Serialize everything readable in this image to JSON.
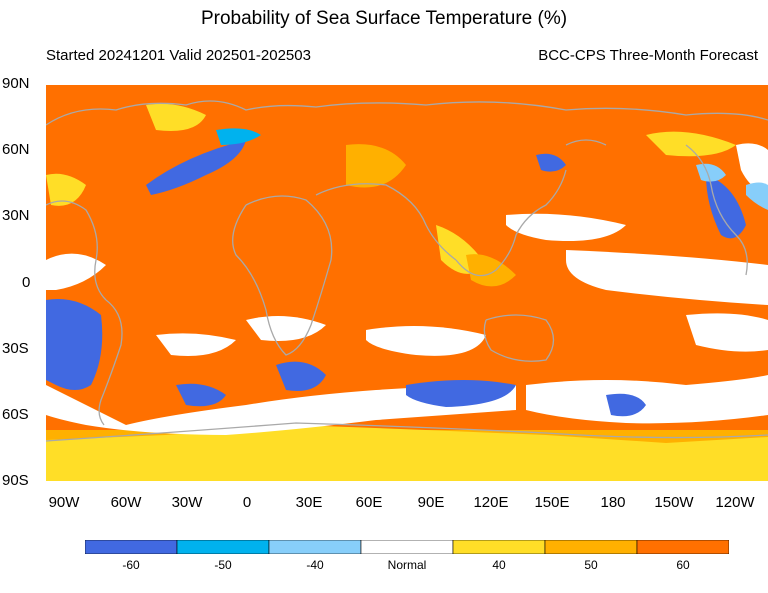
{
  "title": "Probability of Sea Surface Temperature (%)",
  "subtitle_left": "Started 20241201  Valid 202501-202503",
  "subtitle_right": "BCC-CPS Three-Month Forecast",
  "lat_labels": [
    "90N",
    "60N",
    "30N",
    "0",
    "30S",
    "60S",
    "90S"
  ],
  "lon_labels": [
    "90W",
    "60W",
    "30W",
    "0",
    "30E",
    "60E",
    "90E",
    "120E",
    "150E",
    "180",
    "150W",
    "120W"
  ],
  "legend": {
    "labels": [
      "-60",
      "-50",
      "-40",
      "Normal",
      "40",
      "50",
      "60"
    ],
    "colors": [
      "#4169e1",
      "#00b2ee",
      "#87cefa",
      "#ffffff",
      "#ffde27",
      "#ffb000",
      "#ff7000"
    ]
  },
  "colors": {
    "ocean_warm": "#ff7000",
    "coast": "#a9a9a9"
  }
}
